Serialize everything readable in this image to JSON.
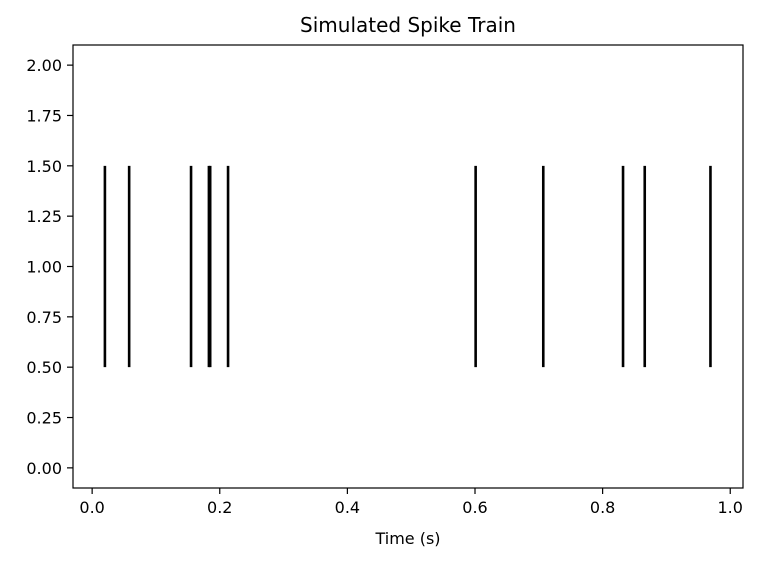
{
  "chart_data": {
    "type": "eventplot",
    "title": "Simulated Spike Train",
    "xlabel": "Time (s)",
    "ylabel": "",
    "xlim": [
      -0.03,
      1.02
    ],
    "ylim": [
      -0.1,
      2.1
    ],
    "xticks": [
      0.0,
      0.2,
      0.4,
      0.6,
      0.8,
      1.0
    ],
    "xtick_labels": [
      "0.0",
      "0.2",
      "0.4",
      "0.6",
      "0.8",
      "1.0"
    ],
    "yticks": [
      0.0,
      0.25,
      0.5,
      0.75,
      1.0,
      1.25,
      1.5,
      1.75,
      2.0
    ],
    "ytick_labels": [
      "0.00",
      "0.25",
      "0.50",
      "0.75",
      "1.00",
      "1.25",
      "1.50",
      "1.75",
      "2.00"
    ],
    "event_line": {
      "y_from": 0.5,
      "y_to": 1.5
    },
    "spike_times": [
      0.02,
      0.058,
      0.155,
      0.183,
      0.185,
      0.213,
      0.601,
      0.707,
      0.832,
      0.866,
      0.969
    ],
    "grid": false,
    "color": "#000000"
  }
}
